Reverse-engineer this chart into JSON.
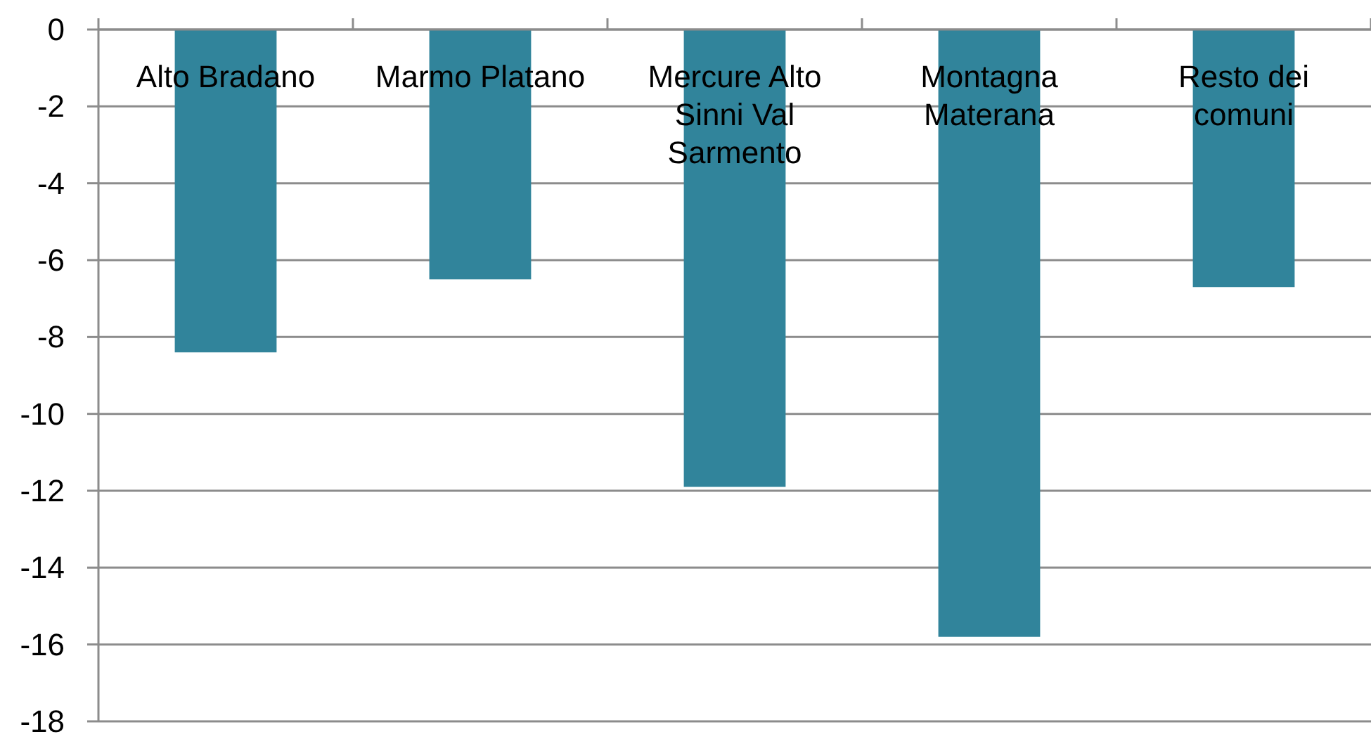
{
  "chart_data": {
    "type": "bar",
    "categories": [
      "Alto Bradano",
      "Marmo Platano",
      "Mercure Alto Sinni Val Sarmento",
      "Montagna Materana",
      "Resto dei comuni"
    ],
    "values": [
      -8.4,
      -6.5,
      -11.9,
      -15.8,
      -6.7
    ],
    "color": "#31849b",
    "ylim": [
      -18,
      0
    ],
    "yticks": [
      0,
      -2,
      -4,
      -6,
      -8,
      -10,
      -12,
      -14,
      -16,
      -18
    ],
    "grid": "y"
  }
}
